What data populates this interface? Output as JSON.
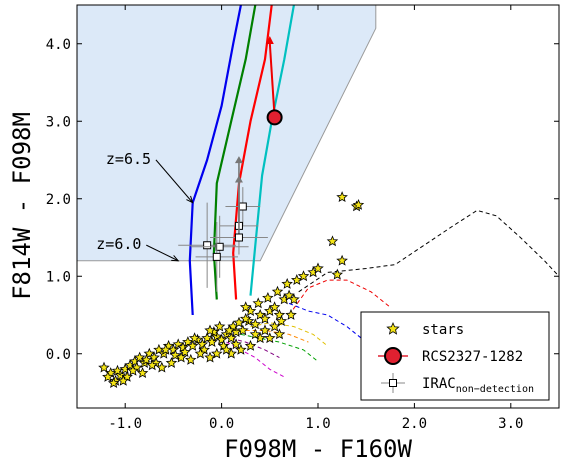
{
  "chart_data": {
    "type": "scatter",
    "xlabel": "F098M - F160W",
    "ylabel": "F814W - F098M",
    "xlim": [
      -1.5,
      3.5
    ],
    "ylim": [
      -0.7,
      4.5
    ],
    "xticks": [
      "-1.0",
      "0.0",
      "1.0",
      "2.0",
      "3.0"
    ],
    "xtick_values": [
      -1.0,
      0.0,
      1.0,
      2.0,
      3.0
    ],
    "yticks": [
      "0.0",
      "1.0",
      "2.0",
      "3.0",
      "4.0"
    ],
    "ytick_values": [
      0.0,
      1.0,
      2.0,
      3.0,
      4.0
    ],
    "selection_region": {
      "color": "#dce9f8",
      "edge_color": "#999999",
      "vertices": [
        [
          -1.5,
          1.2
        ],
        [
          0.4,
          1.2
        ],
        [
          1.6,
          4.2
        ],
        [
          1.6,
          4.5
        ],
        [
          -1.5,
          4.5
        ]
      ]
    },
    "annotations": [
      {
        "text": "z=6.5",
        "xy": [
          -0.3,
          1.95
        ],
        "xytext": [
          -1.2,
          2.45
        ]
      },
      {
        "text": "z=6.0",
        "xy": [
          -0.45,
          1.2
        ],
        "xytext": [
          -1.3,
          1.35
        ]
      }
    ],
    "tracks": [
      {
        "color": "#0000ee",
        "points": [
          [
            -0.3,
            0.5
          ],
          [
            -0.33,
            1.2
          ],
          [
            -0.3,
            1.95
          ],
          [
            -0.15,
            2.5
          ],
          [
            0.0,
            3.2
          ],
          [
            0.12,
            4.0
          ],
          [
            0.2,
            4.5
          ]
        ]
      },
      {
        "color": "#008000",
        "points": [
          [
            -0.05,
            0.7
          ],
          [
            -0.08,
            1.3
          ],
          [
            -0.05,
            2.2
          ],
          [
            0.1,
            3.0
          ],
          [
            0.25,
            3.8
          ],
          [
            0.35,
            4.5
          ]
        ]
      },
      {
        "color": "#ff0000",
        "points": [
          [
            0.15,
            0.7
          ],
          [
            0.12,
            1.3
          ],
          [
            0.18,
            2.2
          ],
          [
            0.3,
            3.0
          ],
          [
            0.45,
            3.8
          ],
          [
            0.52,
            4.5
          ]
        ]
      },
      {
        "color": "#00c0c0",
        "points": [
          [
            0.3,
            0.75
          ],
          [
            0.35,
            1.4
          ],
          [
            0.42,
            2.3
          ],
          [
            0.52,
            3.0
          ],
          [
            0.65,
            3.8
          ],
          [
            0.75,
            4.5
          ]
        ]
      }
    ],
    "red_arrow": {
      "color": "#ee0000",
      "from": [
        0.55,
        3.05
      ],
      "to": [
        0.5,
        4.1
      ]
    },
    "red_target": {
      "label": "RCS2327-1282",
      "x": 0.55,
      "y": 3.05,
      "color": "#e02030"
    },
    "irac_points": [
      {
        "x": 0.22,
        "y": 1.9,
        "xerr": 0.18,
        "yerr": 0.25,
        "arrow_to": null
      },
      {
        "x": 0.18,
        "y": 1.65,
        "xerr": 0.2,
        "yerr": 0.25,
        "arrow_to": 2.55
      },
      {
        "x": 0.18,
        "y": 1.5,
        "xerr": 0.3,
        "yerr": 0.22,
        "arrow_to": 2.3
      },
      {
        "x": -0.15,
        "y": 1.4,
        "xerr": 0.3,
        "yerr": 0.55,
        "arrow_to": null
      },
      {
        "x": -0.02,
        "y": 1.38,
        "xerr": 0.3,
        "yerr": 0.4,
        "arrow_to": null
      },
      {
        "x": -0.05,
        "y": 1.25,
        "xerr": 0.22,
        "yerr": 0.45,
        "arrow_to": null
      }
    ],
    "dashed_tracks": [
      {
        "color": "#000000",
        "points": [
          [
            0.8,
            0.8
          ],
          [
            1.1,
            1.05
          ],
          [
            1.5,
            1.1
          ],
          [
            1.8,
            1.15
          ],
          [
            2.1,
            1.4
          ],
          [
            2.4,
            1.65
          ],
          [
            2.65,
            1.85
          ],
          [
            2.85,
            1.78
          ],
          [
            3.1,
            1.5
          ],
          [
            3.35,
            1.2
          ],
          [
            3.5,
            1.0
          ]
        ]
      },
      {
        "color": "#ee0000",
        "points": [
          [
            0.7,
            0.5
          ],
          [
            0.9,
            0.85
          ],
          [
            1.1,
            0.95
          ],
          [
            1.3,
            0.95
          ],
          [
            1.55,
            0.8
          ],
          [
            1.75,
            0.6
          ]
        ]
      },
      {
        "color": "#0000ee",
        "points": [
          [
            0.7,
            0.65
          ],
          [
            0.9,
            0.55
          ],
          [
            1.1,
            0.5
          ],
          [
            1.3,
            0.35
          ],
          [
            1.5,
            0.15
          ],
          [
            1.65,
            0.0
          ]
        ]
      },
      {
        "color": "#e0c000",
        "points": [
          [
            0.3,
            0.35
          ],
          [
            0.5,
            0.4
          ],
          [
            0.75,
            0.35
          ],
          [
            0.95,
            0.25
          ],
          [
            1.1,
            0.1
          ]
        ]
      },
      {
        "color": "#00a000",
        "points": [
          [
            0.2,
            0.25
          ],
          [
            0.4,
            0.2
          ],
          [
            0.6,
            0.15
          ],
          [
            0.85,
            0.05
          ],
          [
            1.0,
            -0.1
          ]
        ]
      },
      {
        "color": "#cc00cc",
        "points": [
          [
            0.05,
            0.15
          ],
          [
            0.2,
            0.05
          ],
          [
            0.35,
            -0.05
          ],
          [
            0.5,
            -0.2
          ],
          [
            0.65,
            -0.3
          ]
        ]
      },
      {
        "color": "#ff8800",
        "points": [
          [
            0.25,
            0.3
          ],
          [
            0.45,
            0.3
          ],
          [
            0.7,
            0.25
          ],
          [
            0.9,
            0.15
          ]
        ]
      },
      {
        "color": "#800080",
        "points": [
          [
            0.1,
            0.2
          ],
          [
            0.25,
            0.15
          ],
          [
            0.45,
            0.05
          ],
          [
            0.6,
            -0.05
          ]
        ]
      }
    ],
    "stars": {
      "color": "#f4e416",
      "edge": "#000000",
      "points": [
        [
          -1.22,
          -0.18
        ],
        [
          -1.15,
          -0.25
        ],
        [
          -1.1,
          -0.35
        ],
        [
          -1.05,
          -0.28
        ],
        [
          -1.0,
          -0.2
        ],
        [
          -0.95,
          -0.15
        ],
        [
          -0.9,
          -0.1
        ],
        [
          -0.85,
          -0.05
        ],
        [
          -0.8,
          -0.12
        ],
        [
          -0.75,
          0.0
        ],
        [
          -0.7,
          -0.05
        ],
        [
          -0.65,
          0.05
        ],
        [
          -0.6,
          0.0
        ],
        [
          -0.55,
          0.1
        ],
        [
          -0.5,
          0.05
        ],
        [
          -0.45,
          0.12
        ],
        [
          -0.4,
          0.08
        ],
        [
          -0.35,
          0.15
        ],
        [
          -0.3,
          0.1
        ],
        [
          -0.25,
          0.18
        ],
        [
          -0.2,
          0.12
        ],
        [
          -0.15,
          0.2
        ],
        [
          -0.1,
          0.15
        ],
        [
          -0.05,
          0.22
        ],
        [
          0.0,
          0.18
        ],
        [
          0.05,
          0.25
        ],
        [
          0.1,
          0.2
        ],
        [
          0.15,
          0.28
        ],
        [
          -1.18,
          -0.3
        ],
        [
          -1.08,
          -0.22
        ],
        [
          -0.98,
          -0.3
        ],
        [
          -0.88,
          -0.18
        ],
        [
          -0.78,
          -0.08
        ],
        [
          -0.68,
          -0.12
        ],
        [
          -0.58,
          0.05
        ],
        [
          -0.48,
          -0.02
        ],
        [
          -0.38,
          0.02
        ],
        [
          -0.28,
          0.2
        ],
        [
          -0.18,
          0.05
        ],
        [
          -0.08,
          0.28
        ],
        [
          0.02,
          0.1
        ],
        [
          0.12,
          0.35
        ],
        [
          0.22,
          0.3
        ],
        [
          0.28,
          0.42
        ],
        [
          0.35,
          0.38
        ],
        [
          0.4,
          0.5
        ],
        [
          0.45,
          0.45
        ],
        [
          0.5,
          0.55
        ],
        [
          0.55,
          0.6
        ],
        [
          0.6,
          0.5
        ],
        [
          0.65,
          0.7
        ],
        [
          0.7,
          0.75
        ],
        [
          0.75,
          0.7
        ],
        [
          0.3,
          0.55
        ],
        [
          0.25,
          0.6
        ],
        [
          0.38,
          0.65
        ],
        [
          0.48,
          0.72
        ],
        [
          0.58,
          0.8
        ],
        [
          0.68,
          0.9
        ],
        [
          0.78,
          0.95
        ],
        [
          0.85,
          1.0
        ],
        [
          0.95,
          1.05
        ],
        [
          1.0,
          1.1
        ],
        [
          1.2,
          1.02
        ],
        [
          1.25,
          1.2
        ],
        [
          1.15,
          1.45
        ],
        [
          1.25,
          2.02
        ],
        [
          1.4,
          1.9
        ],
        [
          1.42,
          1.92
        ],
        [
          0.1,
          0.0
        ],
        [
          0.2,
          0.05
        ],
        [
          0.3,
          0.1
        ],
        [
          0.4,
          0.2
        ],
        [
          0.15,
          0.12
        ],
        [
          0.05,
          0.05
        ],
        [
          -0.05,
          0.0
        ],
        [
          -0.12,
          -0.05
        ],
        [
          -0.22,
          0.0
        ],
        [
          -0.32,
          -0.08
        ],
        [
          -0.42,
          -0.05
        ],
        [
          -0.52,
          -0.12
        ],
        [
          -0.62,
          -0.18
        ],
        [
          -0.72,
          -0.15
        ],
        [
          -0.82,
          -0.25
        ],
        [
          -0.92,
          -0.22
        ],
        [
          -1.02,
          -0.35
        ],
        [
          -1.12,
          -0.38
        ],
        [
          0.35,
          0.25
        ],
        [
          0.45,
          0.3
        ],
        [
          0.55,
          0.35
        ],
        [
          0.25,
          0.45
        ],
        [
          0.18,
          0.4
        ],
        [
          0.08,
          0.3
        ],
        [
          -0.02,
          0.35
        ],
        [
          -0.12,
          0.3
        ],
        [
          0.62,
          0.42
        ],
        [
          0.72,
          0.5
        ],
        [
          0.5,
          0.2
        ],
        [
          0.6,
          0.25
        ]
      ]
    },
    "legend": {
      "placement": "lower-right",
      "entries": [
        {
          "label": "stars",
          "marker": "star"
        },
        {
          "label": "RCS2327-1282",
          "marker": "big-circle"
        },
        {
          "label": "IRAC",
          "subscript": "non−detection",
          "marker": "open-square"
        }
      ]
    }
  }
}
